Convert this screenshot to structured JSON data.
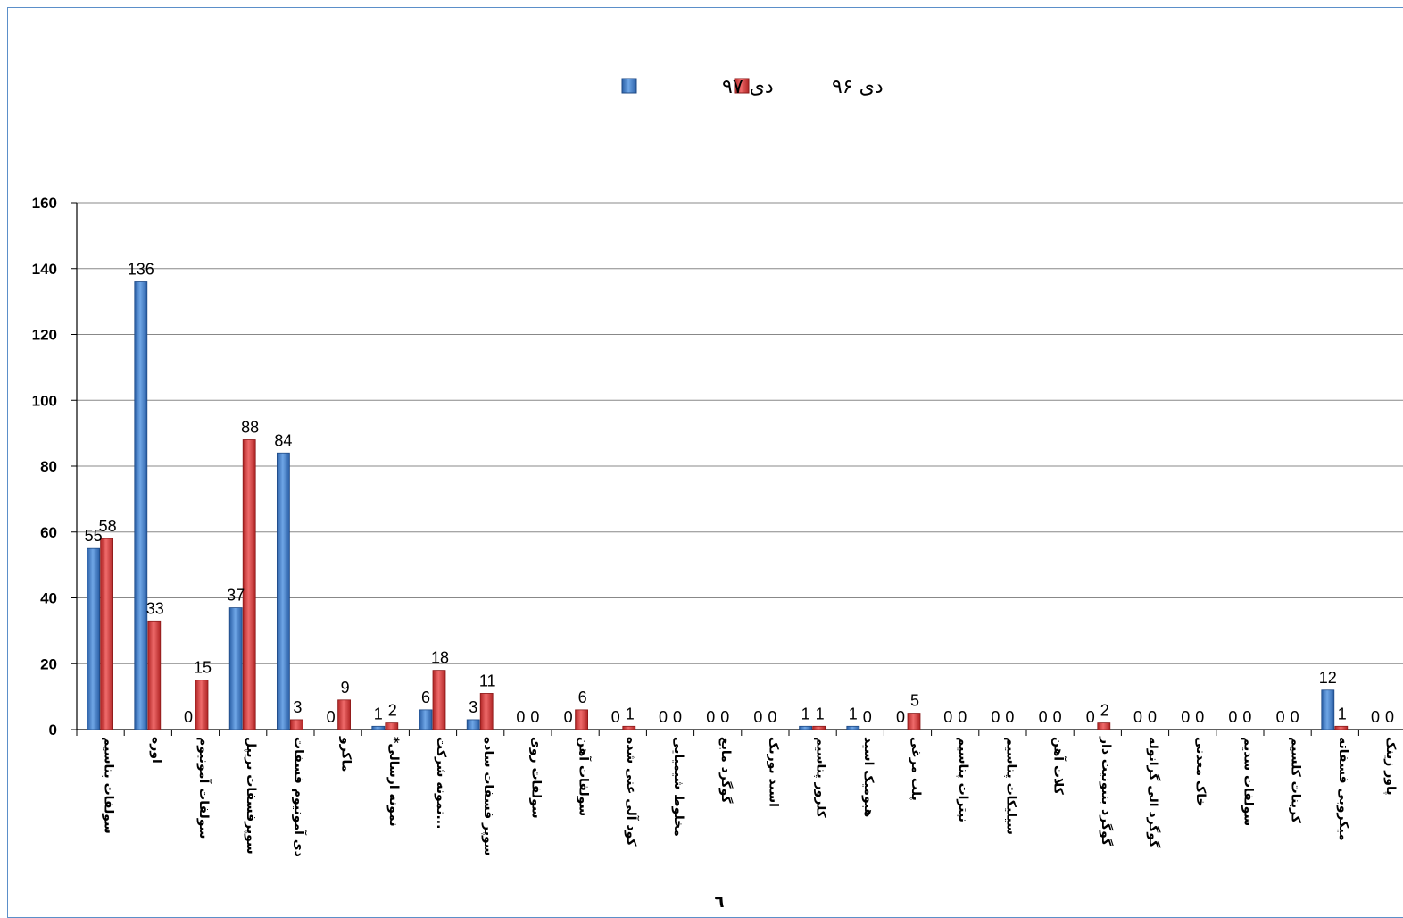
{
  "colors": {
    "series_97": "#3a78c4",
    "series_96": "#d63a3a",
    "grid": "#888888",
    "frame": "#5b8fc9"
  },
  "legend": {
    "position": "top-center",
    "items": [
      {
        "label": "دی ۹۶",
        "series": "series_96"
      },
      {
        "label": "دی ۹۷",
        "series": "series_97"
      }
    ]
  },
  "footnote": "٦",
  "chart_data": {
    "type": "bar",
    "ylim": [
      0,
      160
    ],
    "yticks": [
      0,
      20,
      40,
      60,
      80,
      100,
      120,
      140,
      160
    ],
    "grid": true,
    "categories": [
      "سولفات پتاسیم",
      "اوره",
      "سولفات آمونیوم",
      "سوپرفسفات تریپل",
      "دی آمونیوم فسفات",
      "ماکرو",
      "*نمونه ارسالی",
      "نمونه شرکت...",
      "سوپر فسفات ساده",
      "سولفات روی",
      "سولفات آهن",
      "کود آلی غنی شده",
      "مخلوط شیمیایی",
      "گوگرد مایع",
      "اسید بوریک",
      "کلرور پتاسیم",
      "هیومیک اسید",
      "پلت مرغی",
      "نیترات پتاسیم",
      "سیلیکات پتاسیم",
      "کلات آهن",
      "گوگرد بنتونیت دار",
      "گوگرد الی گرانوله",
      "خاک معدنی",
      "سولفات سدیم",
      "کربنات کلسیم",
      "میکروبی فسفاته",
      "پاور زینک"
    ],
    "series": [
      {
        "name": "دی ۹۷",
        "values": [
          55,
          136,
          0,
          37,
          84,
          0,
          1,
          6,
          3,
          0,
          0,
          0,
          0,
          0,
          0,
          1,
          1,
          0,
          0,
          0,
          0,
          0,
          0,
          0,
          0,
          0,
          12,
          0
        ]
      },
      {
        "name": "دی ۹۶",
        "values": [
          58,
          33,
          15,
          88,
          3,
          9,
          2,
          18,
          11,
          0,
          6,
          1,
          0,
          0,
          0,
          1,
          0,
          5,
          0,
          0,
          0,
          2,
          0,
          0,
          0,
          0,
          1,
          0
        ]
      }
    ]
  }
}
